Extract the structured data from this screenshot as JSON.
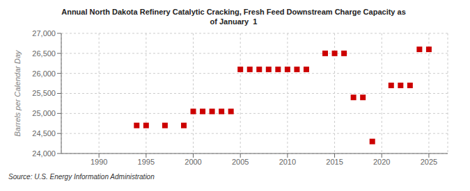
{
  "chart_data": {
    "type": "scatter",
    "title": "Annual North Dakota Refinery Catalytic Cracking, Fresh Feed Downstream Charge Capacity as\nof January  1",
    "y_label": "Barrels per Calendar Day",
    "source": "Source: U.S. Energy Information Administration",
    "x": [
      1994,
      1995,
      1997,
      1999,
      2000,
      2001,
      2002,
      2003,
      2004,
      2005,
      2006,
      2007,
      2008,
      2009,
      2010,
      2011,
      2012,
      2014,
      2015,
      2016,
      2017,
      2018,
      2019,
      2021,
      2022,
      2023,
      2024,
      2025
    ],
    "values": [
      24700,
      24700,
      24700,
      24700,
      25050,
      25050,
      25050,
      25050,
      25050,
      26100,
      26100,
      26100,
      26100,
      26100,
      26100,
      26100,
      26100,
      26500,
      26500,
      26500,
      25400,
      25400,
      24300,
      25700,
      25700,
      25700,
      26600,
      26600
    ],
    "color": "#cc0000",
    "marker": "square",
    "xlim": [
      1986,
      2027
    ],
    "ylim": [
      24000,
      27000
    ],
    "xticks": [
      1990,
      1995,
      2000,
      2005,
      2010,
      2015,
      2020,
      2025
    ],
    "yticks": [
      {
        "value": 24000,
        "label": "24,000"
      },
      {
        "value": 24500,
        "label": "24,500"
      },
      {
        "value": 25000,
        "label": "25,000"
      },
      {
        "value": 25500,
        "label": "25,500"
      },
      {
        "value": 26000,
        "label": "26,000"
      },
      {
        "value": 26500,
        "label": "26,500"
      },
      {
        "value": 27000,
        "label": "27,000"
      }
    ],
    "grid": true
  }
}
